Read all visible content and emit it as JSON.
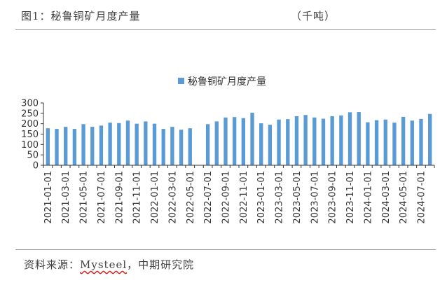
{
  "header": {
    "figure_label": "图1：秘鲁铜矿月度产量",
    "unit": "（千吨）"
  },
  "footer": {
    "source_prefix": "资料来源：",
    "source_brand": "Mysteel",
    "source_suffix": "，中期研究院"
  },
  "colors": {
    "bar": "#5b9bd5",
    "axis": "#333333",
    "rule": "#a0a0a0"
  },
  "chart_data": {
    "type": "bar",
    "title": "",
    "xlabel": "",
    "ylabel": "",
    "ylim": [
      0,
      300
    ],
    "yticks": [
      0,
      50,
      100,
      150,
      200,
      250,
      300
    ],
    "grid": false,
    "legend_position": "top-center",
    "categories": [
      "2021-01-01",
      "2021-02-01",
      "2021-03-01",
      "2021-04-01",
      "2021-05-01",
      "2021-06-01",
      "2021-07-01",
      "2021-08-01",
      "2021-09-01",
      "2021-10-01",
      "2021-11-01",
      "2021-12-01",
      "2022-01-01",
      "2022-02-01",
      "2022-03-01",
      "2022-04-01",
      "2022-05-01",
      "2022-06-01",
      "2022-07-01",
      "2022-08-01",
      "2022-09-01",
      "2022-10-01",
      "2022-11-01",
      "2022-12-01",
      "2023-01-01",
      "2023-02-01",
      "2023-03-01",
      "2023-04-01",
      "2023-05-01",
      "2023-06-01",
      "2023-07-01",
      "2023-08-01",
      "2023-09-01",
      "2023-10-01",
      "2023-11-01",
      "2023-12-01",
      "2024-01-01",
      "2024-02-01",
      "2024-03-01",
      "2024-04-01",
      "2024-05-01",
      "2024-06-01",
      "2024-07-01",
      "2024-08-01"
    ],
    "x_tick_labels": [
      "2021-01-01",
      "2021-03-01",
      "2021-05-01",
      "2021-07-01",
      "2021-09-01",
      "2021-11-01",
      "2022-01-01",
      "2022-03-01",
      "2022-05-01",
      "2022-07-01",
      "2022-09-01",
      "2022-11-01",
      "2023-01-01",
      "2023-03-01",
      "2023-05-01",
      "2023-07-01",
      "2023-09-01",
      "2023-11-01",
      "2024-01-01",
      "2024-03-01",
      "2024-05-01",
      "2024-07-01"
    ],
    "series": [
      {
        "name": "秘鲁铜矿月度产量",
        "values": [
          178,
          175,
          185,
          175,
          198,
          185,
          191,
          205,
          203,
          215,
          200,
          211,
          200,
          175,
          185,
          171,
          178,
          null,
          198,
          211,
          230,
          232,
          227,
          253,
          202,
          195,
          220,
          222,
          236,
          242,
          230,
          224,
          236,
          240,
          255,
          256,
          207,
          217,
          220,
          205,
          233,
          215,
          223,
          247
        ]
      }
    ]
  }
}
